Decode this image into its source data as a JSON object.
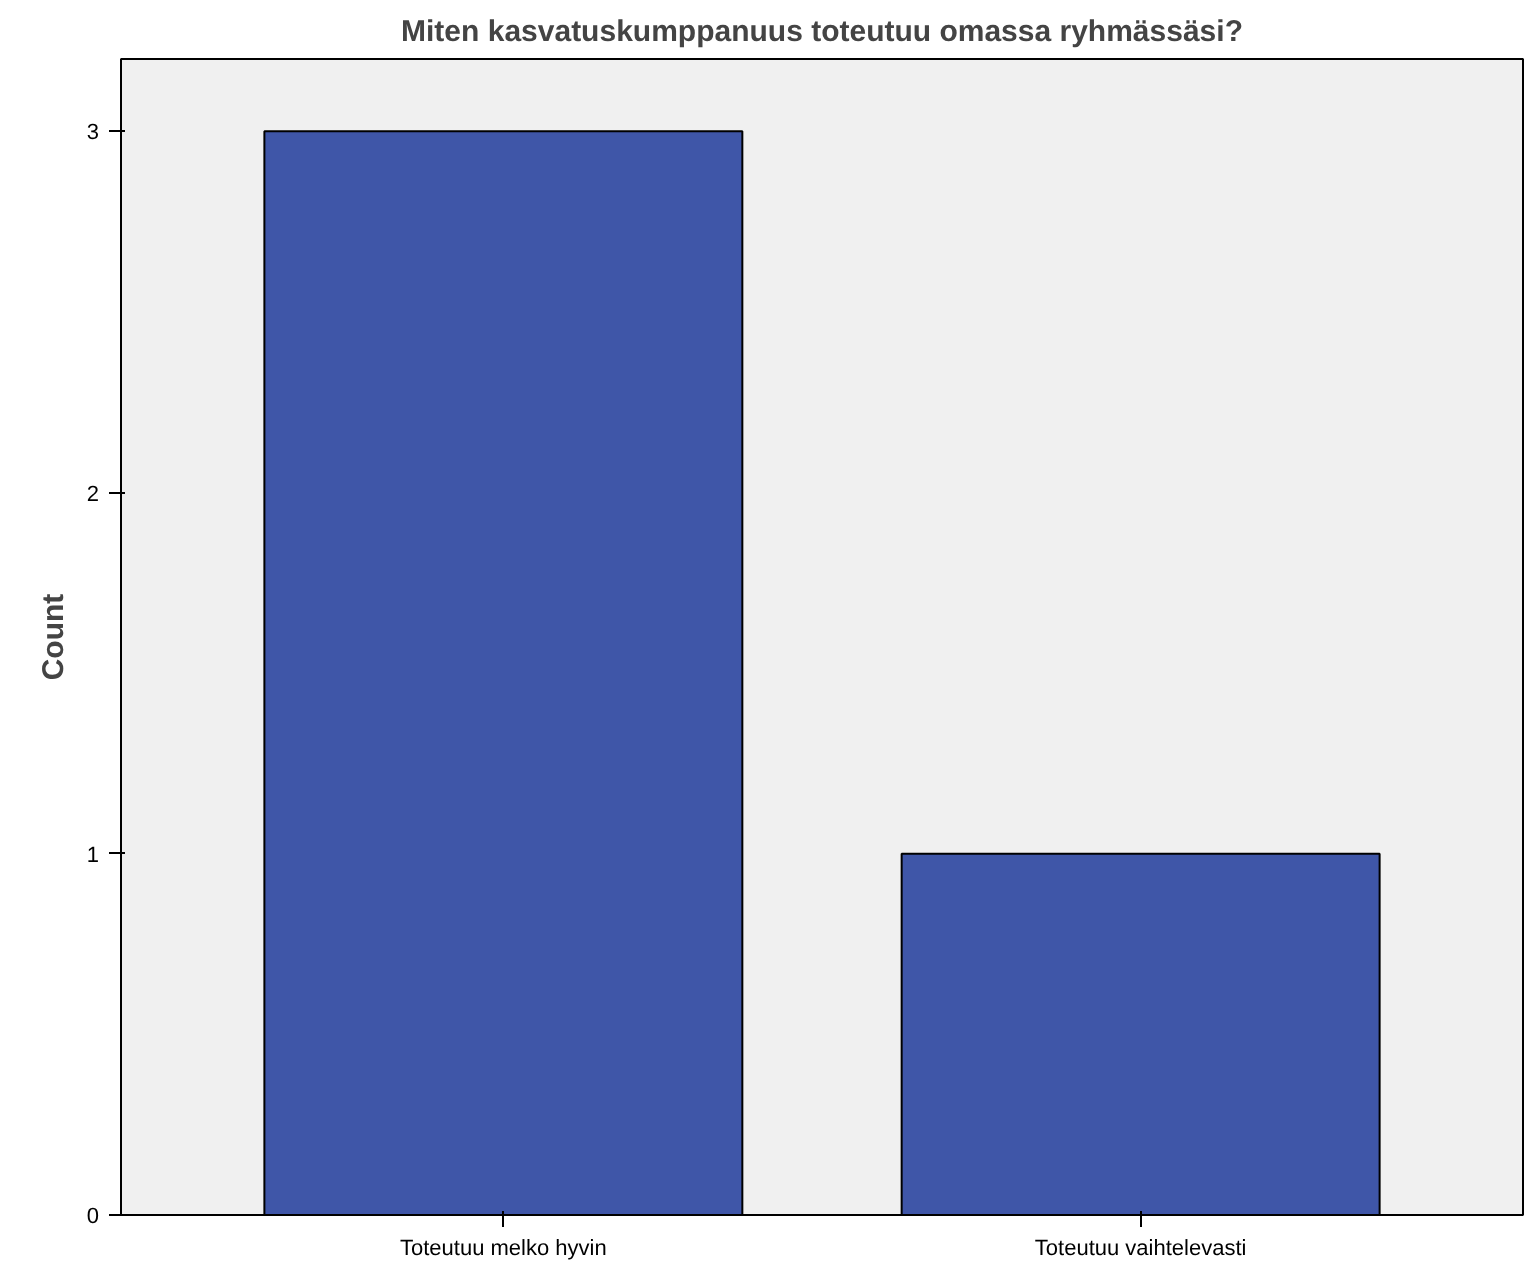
{
  "chart_data": {
    "type": "bar",
    "title": "Miten kasvatuskumppanuus toteutuu omassa ryhmässäsi?",
    "ylabel": "Count",
    "categories": [
      "Toteutuu melko hyvin",
      "Toteutuu vaihtelevasti"
    ],
    "values": [
      3,
      1
    ],
    "color": "#3f56a8",
    "ylim": [
      0,
      3.2
    ],
    "yticks": [
      0,
      1,
      2,
      3
    ],
    "grid": false
  }
}
